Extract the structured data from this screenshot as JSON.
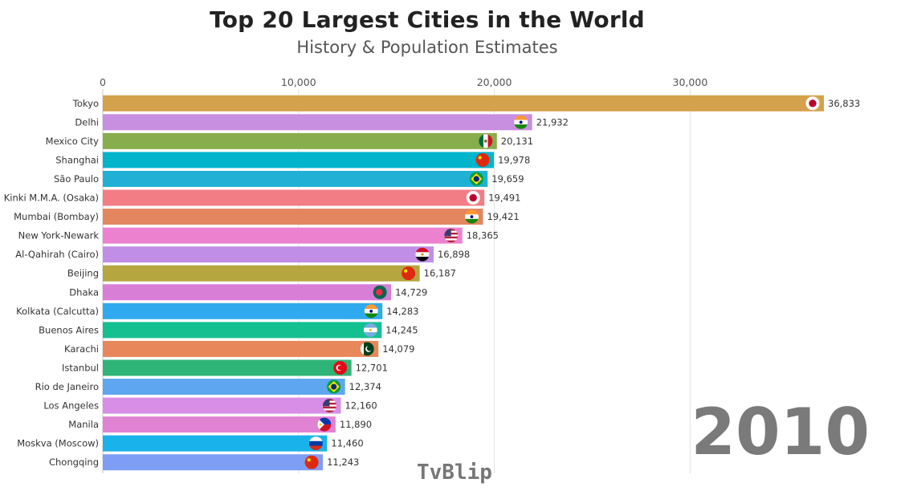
{
  "header": {
    "title": "Top 20 Largest Cities in the World",
    "subtitle": "History & Population Estimates"
  },
  "year": "2010",
  "watermark": "TvBlip",
  "chart_data": {
    "type": "bar",
    "orientation": "horizontal",
    "title": "Top 20 Largest Cities in the World",
    "subtitle": "History & Population Estimates",
    "xlim": [
      0,
      36833
    ],
    "xticks": [
      0,
      10000,
      20000,
      30000
    ],
    "xtick_labels": [
      "0",
      "10,000",
      "20,000",
      "30,000"
    ],
    "grid": true,
    "categories": [
      "Tokyo",
      "Delhi",
      "Mexico City",
      "Shanghai",
      "São Paulo",
      "Kinki M.M.A. (Osaka)",
      "Mumbai (Bombay)",
      "New York-Newark",
      "Al-Qahirah (Cairo)",
      "Beijing",
      "Dhaka",
      "Kolkata (Calcutta)",
      "Buenos Aires",
      "Karachi",
      "Istanbul",
      "Rio de Janeiro",
      "Los Angeles",
      "Manila",
      "Moskva (Moscow)",
      "Chongqing"
    ],
    "values": [
      36833,
      21932,
      20131,
      19978,
      19659,
      19491,
      19421,
      18365,
      16898,
      16187,
      14729,
      14283,
      14245,
      14079,
      12701,
      12374,
      12160,
      11890,
      11460,
      11243
    ],
    "value_labels": [
      "36,833",
      "21,932",
      "20,131",
      "19,978",
      "19,659",
      "19,491",
      "19,421",
      "18,365",
      "16,898",
      "16,187",
      "14,729",
      "14,283",
      "14,245",
      "14,079",
      "12,701",
      "12,374",
      "12,160",
      "11,890",
      "11,460",
      "11,243"
    ],
    "bar_colors": [
      "#d4a24c",
      "#c88ee0",
      "#88ad4c",
      "#00b4cc",
      "#20b0d6",
      "#f27d84",
      "#e3865f",
      "#ec82cf",
      "#c08ee6",
      "#b5a640",
      "#d87ed6",
      "#2faaee",
      "#14bf90",
      "#e8885a",
      "#2fb478",
      "#5ea6ef",
      "#d88ee6",
      "#e282d2",
      "#1ab2ea",
      "#7e9ef6"
    ],
    "flags": [
      "japan",
      "india",
      "mexico",
      "china",
      "brazil",
      "japan",
      "india",
      "usa",
      "egypt",
      "china",
      "bangladesh",
      "india",
      "argentina",
      "pakistan",
      "turkey",
      "brazil",
      "usa",
      "philippines",
      "russia",
      "china"
    ]
  }
}
